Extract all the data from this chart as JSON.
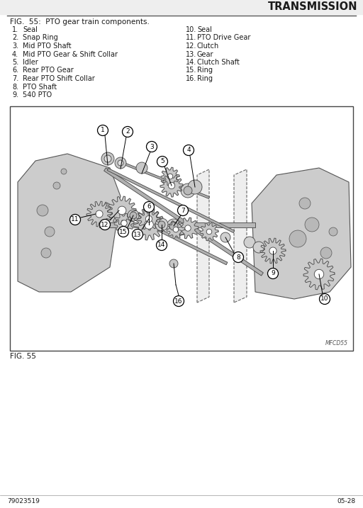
{
  "title": "TRANSMISSION",
  "fig_caption": "FIG.  55:  PTO gear train components.",
  "fig_label": "FIG. 55",
  "fig_code": "MFCD55",
  "doc_number": "79023519",
  "doc_page": "05-28",
  "parts_left": [
    {
      "num": "1.",
      "name": "Seal"
    },
    {
      "num": "2.",
      "name": "Snap Ring"
    },
    {
      "num": "3.",
      "name": "Mid PTO Shaft"
    },
    {
      "num": "4.",
      "name": "Mid PTO Gear & Shift Collar"
    },
    {
      "num": "5.",
      "name": "Idler"
    },
    {
      "num": "6.",
      "name": "Rear PTO Gear"
    },
    {
      "num": "7.",
      "name": "Rear PTO Shift Collar"
    },
    {
      "num": "8.",
      "name": "PTO Shaft"
    },
    {
      "num": "9.",
      "name": "540 PTO"
    }
  ],
  "parts_right": [
    {
      "num": "10.",
      "name": "Seal"
    },
    {
      "num": "11.",
      "name": "PTO Drive Gear"
    },
    {
      "num": "12.",
      "name": "Clutch"
    },
    {
      "num": "13.",
      "name": "Gear"
    },
    {
      "num": "14.",
      "name": "Clutch Shaft"
    },
    {
      "num": "15.",
      "name": "Ring"
    },
    {
      "num": "16.",
      "name": "Ring"
    }
  ],
  "bg_color": "#ffffff",
  "text_color": "#1a1a1a",
  "diagram_border": "#444444",
  "font_size_title": 10.5,
  "font_size_caption": 7.5,
  "font_size_body": 7.0,
  "font_size_label": 6.5,
  "font_size_footer": 6.5,
  "header_bar_color": "#dddddd",
  "line_color": "#555555",
  "gear_fill": "#c8c8c8",
  "gear_edge": "#444444",
  "case_fill": "#d0d0d0",
  "case_edge": "#555555",
  "shaft_fill": "#b0b0b0",
  "label_circle_r": 7.5
}
